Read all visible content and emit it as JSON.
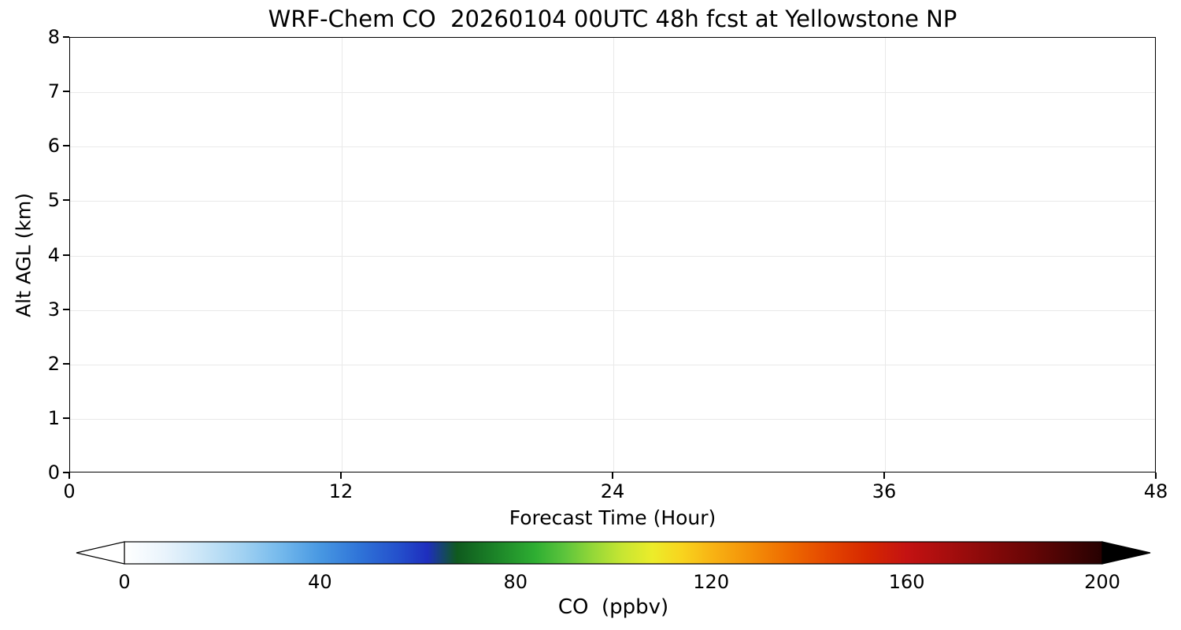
{
  "chart_data": {
    "type": "heatmap",
    "title": "WRF-Chem CO  20260104 00UTC 48h fcst at Yellowstone NP",
    "xlabel": "Forecast Time (Hour)",
    "ylabel": "Alt AGL (km)",
    "xlim": [
      0,
      48
    ],
    "ylim": [
      0,
      8
    ],
    "x_ticks": [
      0,
      12,
      24,
      36,
      48
    ],
    "y_ticks": [
      0,
      1,
      2,
      3,
      4,
      5,
      6,
      7,
      8
    ],
    "grid": true,
    "grid_color": "#e9e9e9",
    "values": [],
    "data_note": "Plot area renders blank/white - no CO contour values visible above the colormap minimum over the 48h forecast window",
    "colorbar": {
      "label": "CO  (ppbv)",
      "min": 0,
      "max": 200,
      "ticks": [
        0,
        40,
        80,
        120,
        160,
        200
      ],
      "extend": "both",
      "extend_left_color": "#ffffff",
      "extend_right_color": "#000000",
      "stops": [
        {
          "pos": 0.0,
          "color": "#ffffff"
        },
        {
          "pos": 0.04,
          "color": "#eaf4fc"
        },
        {
          "pos": 0.08,
          "color": "#c9e5f7"
        },
        {
          "pos": 0.12,
          "color": "#a2d2f2"
        },
        {
          "pos": 0.16,
          "color": "#74b9ec"
        },
        {
          "pos": 0.2,
          "color": "#4898e2"
        },
        {
          "pos": 0.24,
          "color": "#2f74d8"
        },
        {
          "pos": 0.28,
          "color": "#2450cc"
        },
        {
          "pos": 0.31,
          "color": "#1e2ebe"
        },
        {
          "pos": 0.34,
          "color": "#0f5a1e"
        },
        {
          "pos": 0.38,
          "color": "#1c8428"
        },
        {
          "pos": 0.42,
          "color": "#2eae32"
        },
        {
          "pos": 0.45,
          "color": "#5cc43c"
        },
        {
          "pos": 0.48,
          "color": "#96d838"
        },
        {
          "pos": 0.51,
          "color": "#c8e632"
        },
        {
          "pos": 0.54,
          "color": "#ecec2a"
        },
        {
          "pos": 0.57,
          "color": "#f8d41e"
        },
        {
          "pos": 0.6,
          "color": "#f8b414"
        },
        {
          "pos": 0.64,
          "color": "#f49008"
        },
        {
          "pos": 0.68,
          "color": "#ee6a00"
        },
        {
          "pos": 0.72,
          "color": "#e44600"
        },
        {
          "pos": 0.76,
          "color": "#d62800"
        },
        {
          "pos": 0.8,
          "color": "#c41212"
        },
        {
          "pos": 0.84,
          "color": "#a80e0e"
        },
        {
          "pos": 0.88,
          "color": "#8a0a0a"
        },
        {
          "pos": 0.92,
          "color": "#6c0606"
        },
        {
          "pos": 0.96,
          "color": "#4a0404"
        },
        {
          "pos": 1.0,
          "color": "#260101"
        }
      ]
    }
  }
}
